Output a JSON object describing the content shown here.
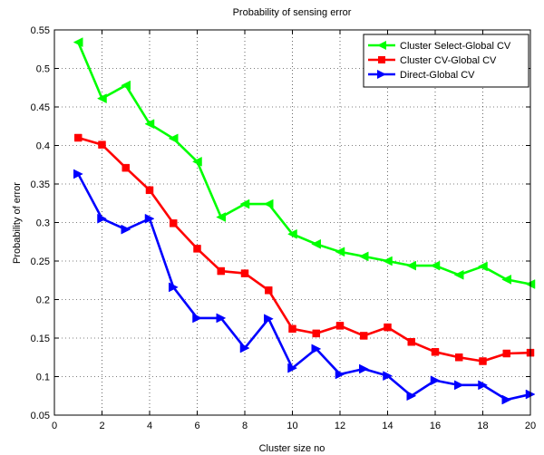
{
  "chart_data": {
    "type": "line",
    "title": "Probability of sensing error",
    "xlabel": "Cluster size no",
    "ylabel": "Probability of error",
    "xlim": [
      0,
      20
    ],
    "ylim": [
      0.05,
      0.55
    ],
    "xticks": [
      0,
      2,
      4,
      6,
      8,
      10,
      12,
      14,
      16,
      18,
      20
    ],
    "yticks": [
      0.05,
      0.1,
      0.15,
      0.2,
      0.25,
      0.3,
      0.35,
      0.4,
      0.45,
      0.5,
      0.55
    ],
    "xtick_labels": [
      "0",
      "2",
      "4",
      "6",
      "8",
      "10",
      "12",
      "14",
      "16",
      "18",
      "20"
    ],
    "ytick_labels": [
      "0.05",
      "0.1",
      "0.15",
      "0.2",
      "0.25",
      "0.3",
      "0.35",
      "0.4",
      "0.45",
      "0.5",
      "0.55"
    ],
    "grid": true,
    "legend_position": "top-right",
    "x": [
      1,
      2,
      3,
      4,
      5,
      6,
      7,
      8,
      9,
      10,
      11,
      12,
      13,
      14,
      15,
      16,
      17,
      18,
      19,
      20
    ],
    "series": [
      {
        "name": "Cluster Select-Global CV",
        "color": "#00ff00",
        "marker": "triangle-left",
        "values": [
          0.534,
          0.461,
          0.478,
          0.428,
          0.409,
          0.379,
          0.307,
          0.324,
          0.324,
          0.285,
          0.272,
          0.262,
          0.256,
          0.25,
          0.244,
          0.244,
          0.232,
          0.243,
          0.226,
          0.22
        ]
      },
      {
        "name": "Cluster CV-Global CV",
        "color": "#ff0000",
        "marker": "square",
        "values": [
          0.41,
          0.401,
          0.371,
          0.342,
          0.299,
          0.266,
          0.237,
          0.234,
          0.212,
          0.162,
          0.156,
          0.166,
          0.153,
          0.164,
          0.145,
          0.132,
          0.125,
          0.12,
          0.13,
          0.131
        ]
      },
      {
        "name": "Direct-Global CV",
        "color": "#0000ff",
        "marker": "triangle-right",
        "values": [
          0.363,
          0.305,
          0.291,
          0.305,
          0.216,
          0.176,
          0.176,
          0.137,
          0.175,
          0.111,
          0.136,
          0.103,
          0.11,
          0.101,
          0.075,
          0.095,
          0.089,
          0.089,
          0.07,
          0.077
        ]
      }
    ]
  }
}
